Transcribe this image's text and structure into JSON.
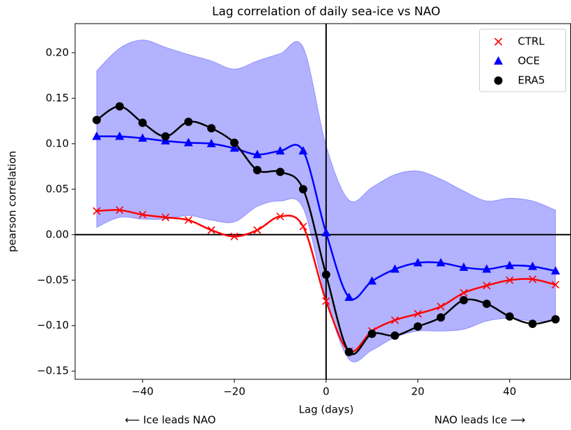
{
  "chart_data": {
    "type": "line",
    "title": "Lag correlation of daily sea-ice vs NAO",
    "xlabel": "Lag (days)",
    "ylabel": "pearson correlation",
    "annotations": [
      "⟵ Ice leads NAO",
      "NAO leads Ice ⟶"
    ],
    "x": [
      -50,
      -45,
      -40,
      -35,
      -30,
      -25,
      -20,
      -15,
      -10,
      -5,
      0,
      5,
      10,
      15,
      20,
      25,
      30,
      35,
      40,
      45,
      50
    ],
    "series": [
      {
        "name": "CTRL",
        "color": "#ff0000",
        "marker": "x",
        "values": [
          0.026,
          0.027,
          0.022,
          0.019,
          0.016,
          0.005,
          -0.002,
          0.005,
          0.02,
          0.009,
          -0.073,
          -0.128,
          -0.106,
          -0.094,
          -0.087,
          -0.079,
          -0.064,
          -0.056,
          -0.05,
          -0.049,
          -0.055
        ]
      },
      {
        "name": "OCE",
        "color": "#0000ff",
        "marker": "triangle",
        "values": [
          0.108,
          0.108,
          0.106,
          0.103,
          0.101,
          0.1,
          0.095,
          0.088,
          0.092,
          0.092,
          0.002,
          -0.069,
          -0.051,
          -0.038,
          -0.031,
          -0.031,
          -0.036,
          -0.038,
          -0.034,
          -0.035,
          -0.04
        ]
      },
      {
        "name": "ERA5",
        "color": "#000000",
        "marker": "circle",
        "values": [
          0.126,
          0.141,
          0.123,
          0.108,
          0.124,
          0.117,
          0.101,
          0.071,
          0.069,
          0.05,
          -0.044,
          -0.129,
          -0.109,
          -0.111,
          -0.101,
          -0.091,
          -0.072,
          -0.076,
          -0.09,
          -0.098,
          -0.093
        ]
      }
    ],
    "band": {
      "color": "#0000ff",
      "upper": [
        0.18,
        0.205,
        0.214,
        0.206,
        0.198,
        0.191,
        0.182,
        0.191,
        0.199,
        0.206,
        0.098,
        0.038,
        0.052,
        0.066,
        0.07,
        0.061,
        0.048,
        0.037,
        0.04,
        0.037,
        0.027
      ],
      "lower": [
        0.008,
        0.019,
        0.017,
        0.017,
        0.021,
        0.016,
        0.014,
        0.031,
        0.037,
        0.029,
        -0.07,
        -0.137,
        -0.127,
        -0.113,
        -0.106,
        -0.106,
        -0.104,
        -0.095,
        -0.092,
        -0.095,
        -0.095
      ]
    },
    "axhline": 0,
    "axvline": 0,
    "xlim": [
      -54.7,
      53.3
    ],
    "ylim": [
      -0.159,
      0.232
    ],
    "xticks": [
      {
        "value": -40,
        "label": "−40"
      },
      {
        "value": -20,
        "label": "−20"
      },
      0,
      20,
      40
    ],
    "yticks": [
      {
        "value": -0.15,
        "label": "−0.15"
      },
      {
        "value": -0.1,
        "label": "−0.10"
      },
      {
        "value": -0.05,
        "label": "−0.05"
      },
      {
        "value": 0,
        "label": "0.00"
      },
      {
        "value": 0.05,
        "label": "0.05"
      },
      {
        "value": 0.1,
        "label": "0.10"
      },
      {
        "value": 0.15,
        "label": "0.15"
      },
      {
        "value": 0.2,
        "label": "0.20"
      }
    ],
    "legend": "upper right"
  }
}
